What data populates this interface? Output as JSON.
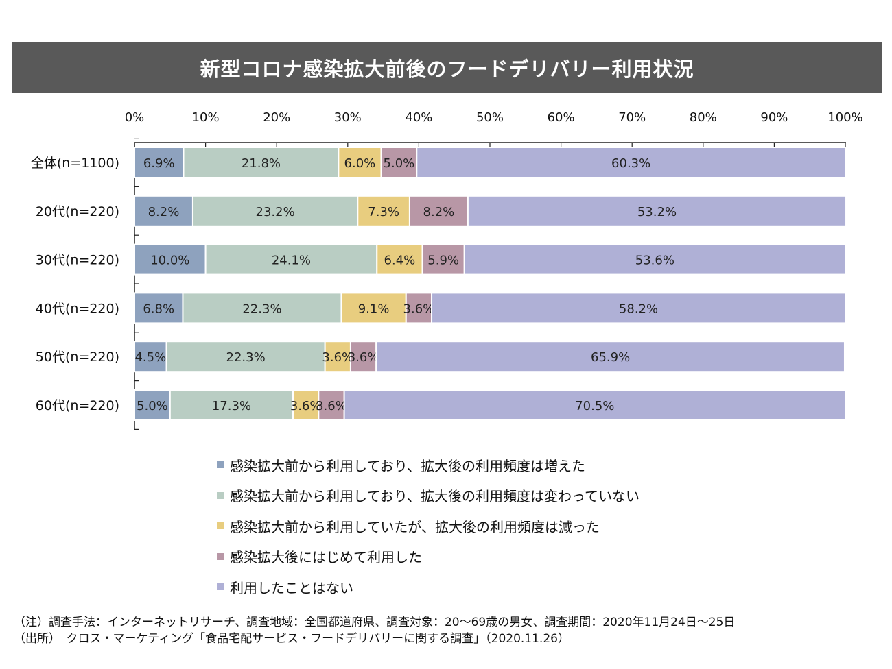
{
  "title": "新型コロナ感染拡大前後のフードデリバリー利用状況",
  "chart_data": {
    "type": "bar",
    "orientation": "horizontal",
    "stacked": true,
    "percent_stacked": true,
    "title": "新型コロナ感染拡大前後のフードデリバリー利用状況",
    "x_axis_position": "top",
    "xlim": [
      0,
      100
    ],
    "x_ticks": [
      "0%",
      "10%",
      "20%",
      "30%",
      "40%",
      "50%",
      "60%",
      "70%",
      "80%",
      "90%",
      "100%"
    ],
    "categories": [
      "全体(n=1100)",
      "20代(n=220)",
      "30代(n=220)",
      "40代(n=220)",
      "50代(n=220)",
      "60代(n=220)"
    ],
    "series": [
      {
        "name": "感染拡大前から利用しており、拡大後の利用頻度は増えた",
        "color": "#8EA2BE",
        "values": [
          6.9,
          8.2,
          10.0,
          6.8,
          4.5,
          5.0
        ],
        "labels": [
          "6.9%",
          "8.2%",
          "10.0%",
          "6.8%",
          "4.5%",
          "5.0%"
        ]
      },
      {
        "name": "感染拡大前から利用しており、拡大後の利用頻度は変わっていない",
        "color": "#B9CDC3",
        "values": [
          21.8,
          23.2,
          24.1,
          22.3,
          22.3,
          17.3
        ],
        "labels": [
          "21.8%",
          "23.2%",
          "24.1%",
          "22.3%",
          "22.3%",
          "17.3%"
        ]
      },
      {
        "name": "感染拡大前から利用していたが、拡大後の利用頻度は減った",
        "color": "#E8CD7F",
        "values": [
          6.0,
          7.3,
          6.4,
          9.1,
          3.6,
          3.6
        ],
        "labels": [
          "6.0%",
          "7.3%",
          "6.4%",
          "9.1%",
          "3.6%",
          "3.6%"
        ]
      },
      {
        "name": "感染拡大後にはじめて利用した",
        "color": "#B897A6",
        "values": [
          5.0,
          8.2,
          5.9,
          3.6,
          3.6,
          3.6
        ],
        "labels": [
          "5.0%",
          "8.2%",
          "5.9%",
          "3.6%",
          "3.6%",
          "3.6%"
        ]
      },
      {
        "name": "利用したことはない",
        "color": "#AFB0D6",
        "values": [
          60.3,
          53.2,
          53.6,
          58.2,
          65.9,
          70.5
        ],
        "labels": [
          "60.3%",
          "53.2%",
          "53.6%",
          "58.2%",
          "65.9%",
          "70.5%"
        ]
      }
    ],
    "legend_position": "bottom",
    "grid": false
  },
  "footnotes": {
    "method": "（注）調査手法：インターネットリサーチ、調査地域：全国都道府県、調査対象：20～69歳の男女、調査期間：2020年11月24日～25日",
    "source": "（出所）　クロス・マーケティング「食品宅配サービス・フードデリバリーに関する調査」（2020.11.26）"
  }
}
